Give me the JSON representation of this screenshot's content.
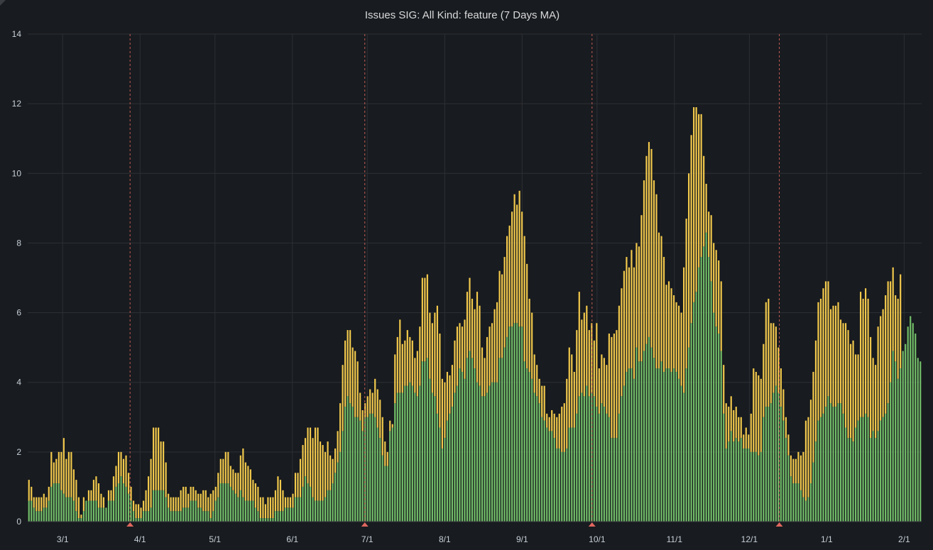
{
  "panel": {
    "title": "Issues SIG: All Kind: feature (7 Days MA)"
  },
  "chart_data": {
    "type": "bar",
    "stacked": true,
    "title": "Issues SIG: All Kind: feature (7 Days MA)",
    "xlabel": "",
    "ylabel": "",
    "ylim": [
      0,
      14
    ],
    "yticks": [
      0,
      2,
      4,
      6,
      8,
      10,
      12,
      14
    ],
    "grid": true,
    "legend": "none",
    "x_range": [
      "2020-02-16",
      "2021-02-08"
    ],
    "xticks": [
      {
        "date": "2020-03-01",
        "label": "3/1"
      },
      {
        "date": "2020-04-01",
        "label": "4/1"
      },
      {
        "date": "2020-05-01",
        "label": "5/1"
      },
      {
        "date": "2020-06-01",
        "label": "6/1"
      },
      {
        "date": "2020-07-01",
        "label": "7/1"
      },
      {
        "date": "2020-08-01",
        "label": "8/1"
      },
      {
        "date": "2020-09-01",
        "label": "9/1"
      },
      {
        "date": "2020-10-01",
        "label": "10/1"
      },
      {
        "date": "2020-11-01",
        "label": "11/1"
      },
      {
        "date": "2020-12-01",
        "label": "12/1"
      },
      {
        "date": "2021-01-01",
        "label": "1/1"
      },
      {
        "date": "2021-02-01",
        "label": "2/1"
      }
    ],
    "annotations": [
      "2020-03-28",
      "2020-06-30",
      "2020-09-29",
      "2020-12-13"
    ],
    "colors": {
      "green": "#73bf69",
      "yellow": "#f2c94c",
      "annotation": "#e0665e",
      "grid": "#2c3035"
    },
    "series": [
      {
        "color": "#73bf69",
        "values": [
          0.6,
          0.6,
          0.4,
          0.3,
          0.3,
          0.3,
          0.4,
          0.4,
          0.6,
          1,
          1.1,
          1.1,
          1.1,
          0.9,
          0.8,
          0.7,
          0.7,
          0.7,
          0.6,
          0.3,
          0.1,
          0.1,
          0.3,
          0.6,
          0.6,
          0.6,
          0.6,
          0.6,
          0.4,
          0.4,
          0.4,
          0.4,
          0.6,
          0.6,
          0.6,
          1,
          1.1,
          1.3,
          1.1,
          1,
          0.8,
          0.6,
          0.3,
          0.1,
          0.1,
          0.1,
          0.3,
          0.3,
          0.3,
          0.4,
          0.9,
          0.9,
          0.9,
          0.9,
          0.9,
          0.7,
          0.4,
          0.3,
          0.3,
          0.3,
          0.3,
          0.3,
          0.4,
          0.4,
          0.4,
          0.6,
          0.6,
          0.6,
          0.4,
          0.4,
          0.3,
          0.3,
          0.3,
          0.1,
          0.3,
          0.6,
          0.7,
          1.1,
          1.1,
          1.1,
          1.1,
          1,
          0.9,
          0.8,
          0.7,
          0.9,
          0.7,
          0.6,
          0.6,
          0.6,
          0.6,
          0.4,
          0.3,
          0.1,
          0.1,
          0.1,
          0.1,
          0.1,
          0.1,
          0.3,
          0.3,
          0.3,
          0.3,
          0.4,
          0.4,
          0.4,
          0.4,
          0.7,
          0.7,
          0.7,
          1,
          1.3,
          1.1,
          1,
          0.7,
          0.6,
          0.6,
          0.6,
          0.6,
          0.7,
          0.9,
          0.9,
          1.1,
          1.4,
          1.7,
          2,
          2.6,
          3.3,
          3.6,
          3.4,
          3.3,
          3,
          3,
          2.9,
          2.6,
          3,
          3,
          3.1,
          3.1,
          3,
          2.7,
          2.4,
          1.9,
          1.6,
          1.6,
          2.6,
          2.7,
          3.4,
          3.7,
          3.7,
          3.7,
          3.9,
          3.9,
          4,
          3.9,
          3.7,
          3.6,
          3.9,
          4.6,
          4.6,
          4.7,
          4.1,
          3.7,
          3.6,
          3.1,
          2.7,
          2.1,
          2.4,
          2.9,
          3.1,
          3.3,
          3.7,
          3.9,
          4.4,
          4.3,
          4.1,
          4.7,
          4.9,
          4.7,
          4.4,
          4,
          3.9,
          3.6,
          3.6,
          3.7,
          3.9,
          4,
          4,
          4,
          4.7,
          4.7,
          5,
          5.3,
          5.6,
          5.6,
          5.7,
          5.7,
          5.6,
          5.6,
          4.6,
          4.4,
          4.3,
          4.1,
          3.7,
          3.6,
          3.4,
          3,
          2.9,
          2.7,
          2.6,
          2.6,
          2.4,
          2.1,
          2.1,
          2,
          2,
          2.1,
          2.7,
          2.7,
          2.7,
          3.1,
          3.6,
          3.7,
          3.6,
          3.9,
          3.6,
          3.7,
          3.6,
          3.3,
          3.1,
          3.4,
          3.3,
          3.1,
          3,
          2.4,
          2.4,
          2.4,
          3.1,
          3.6,
          3.9,
          4.3,
          4.4,
          4.4,
          4.1,
          5,
          4.6,
          4.6,
          4.9,
          5.1,
          5.3,
          5,
          4.7,
          4.4,
          4.4,
          4.6,
          4.3,
          4.4,
          4.4,
          4.3,
          4.4,
          4.3,
          4.1,
          3.9,
          3.7,
          4.4,
          5,
          5.7,
          6.3,
          6.6,
          7.3,
          7.6,
          7.9,
          8.3,
          7.6,
          6.9,
          6,
          5.6,
          5.4,
          4.9,
          3.1,
          2.1,
          2.3,
          2.6,
          2.3,
          2.4,
          2.3,
          2.4,
          2.1,
          2.1,
          2.1,
          2,
          2,
          2,
          1.9,
          2,
          3,
          3.3,
          3.3,
          3.4,
          3.7,
          3.9,
          3.7,
          3.3,
          2.9,
          2.4,
          1.9,
          1.3,
          1.1,
          1.1,
          1.1,
          0.9,
          0.7,
          0.6,
          0.7,
          1.1,
          1.7,
          2.3,
          2.9,
          3,
          3.1,
          3.3,
          3.6,
          3.4,
          3.3,
          3.3,
          3.4,
          3.4,
          3.1,
          2.7,
          2.4,
          2.4,
          2.3,
          2.7,
          2.9,
          3,
          3,
          3.1,
          3,
          2.4,
          2.6,
          2.4,
          2.6,
          2.9,
          3,
          3.1,
          3.4,
          4,
          4.9,
          4.6,
          4.1,
          4.4,
          4.9,
          5.1,
          5.6,
          5.9,
          5.7,
          5.4,
          4.7,
          4.6
        ]
      },
      {
        "color": "#f2c94c",
        "values": [
          0.6,
          0.4,
          0.3,
          0.4,
          0.4,
          0.4,
          0.4,
          0.3,
          0.4,
          1,
          0.6,
          0.7,
          0.9,
          1.1,
          1.6,
          1.1,
          1.3,
          1.3,
          0.9,
          0.9,
          0.6,
          0.1,
          0.4,
          0,
          0.3,
          0.3,
          0.6,
          0.7,
          0.7,
          0.4,
          0.3,
          0,
          0.3,
          0.3,
          0.7,
          0.6,
          0.9,
          0.7,
          0.7,
          0.9,
          0.6,
          0.4,
          0.3,
          0.4,
          0.4,
          0.3,
          0.3,
          0.6,
          1,
          1.4,
          1.8,
          1.8,
          1.8,
          1.4,
          1.4,
          1,
          0.4,
          0.4,
          0.4,
          0.4,
          0.4,
          0.6,
          0.6,
          0.6,
          0.4,
          0.4,
          0.4,
          0.3,
          0.4,
          0.4,
          0.6,
          0.6,
          0.4,
          0.7,
          0.6,
          0.4,
          0.7,
          0.7,
          0.7,
          0.9,
          0.9,
          0.6,
          0.6,
          0.6,
          0.7,
          1,
          1.4,
          1.1,
          1,
          0.9,
          0.6,
          0.7,
          0.7,
          0.6,
          0.6,
          0.4,
          0.6,
          0.6,
          0.6,
          0.6,
          1,
          0.9,
          0.6,
          0.3,
          0.3,
          0.3,
          0.4,
          0.7,
          0.7,
          1.1,
          1.2,
          1.1,
          1.6,
          1.7,
          1.7,
          2.1,
          2.1,
          1.7,
          1.6,
          1.3,
          1.4,
          1,
          0.7,
          0.7,
          0.9,
          1.4,
          1.9,
          1.9,
          1.9,
          2.1,
          1.7,
          1.9,
          1.6,
          0.8,
          0.6,
          0.4,
          0.6,
          0.7,
          0.6,
          1.1,
          1.1,
          1.1,
          1.1,
          0.7,
          0.4,
          0.3,
          0.1,
          1.4,
          1.6,
          2.1,
          1.4,
          1.3,
          1.6,
          1.3,
          1.3,
          1,
          1.3,
          1.7,
          2.4,
          2.4,
          2.4,
          1.9,
          2,
          2.4,
          3.1,
          2.7,
          2,
          1.6,
          1.4,
          1.1,
          1.2,
          1.5,
          1.7,
          1.3,
          1.3,
          1.7,
          1.9,
          2.1,
          1.7,
          1.7,
          2.6,
          2.3,
          1.4,
          1.1,
          1.6,
          1.7,
          1.7,
          2.1,
          2.3,
          2.5,
          2.4,
          2.6,
          2.9,
          2.9,
          3.3,
          3.7,
          3.4,
          3.9,
          3.3,
          3.6,
          3,
          2.1,
          1.9,
          1.1,
          0.9,
          0.7,
          0.9,
          1,
          0.4,
          0.4,
          0.6,
          0.7,
          0.9,
          1,
          1.3,
          1.4,
          2,
          2.3,
          2.1,
          1.6,
          2.4,
          3,
          2.1,
          2.4,
          2.3,
          1.9,
          2,
          1.6,
          2.4,
          1.3,
          1.4,
          1.4,
          1.4,
          2.4,
          2.9,
          3,
          3.1,
          3.1,
          3.1,
          3.3,
          3.3,
          2.9,
          3.4,
          3.2,
          3,
          3.3,
          4.2,
          4.9,
          5.4,
          5.6,
          5.7,
          5.1,
          5,
          3.9,
          3.6,
          3.3,
          2.4,
          2.5,
          2.4,
          2.1,
          2,
          2.1,
          2.1,
          3.6,
          4.3,
          5,
          5.4,
          5.6,
          5.3,
          4.4,
          4.1,
          2.6,
          1.4,
          1.3,
          1.9,
          2,
          2.2,
          2.1,
          2,
          1.4,
          1.3,
          1,
          1,
          0.9,
          0.9,
          0.7,
          0.6,
          0.4,
          0.6,
          0.4,
          1.1,
          2.4,
          2.3,
          2.3,
          2.1,
          2.1,
          3,
          3.1,
          2.3,
          2,
          1.7,
          1.3,
          1.1,
          0.9,
          0.6,
          0.6,
          0.6,
          0.7,
          0.7,
          0.9,
          1,
          1.3,
          2.3,
          2.3,
          2.4,
          2.6,
          2.9,
          3.4,
          3.4,
          3.6,
          3.6,
          3.3,
          2.7,
          2.9,
          2.9,
          2.9,
          2.4,
          2.6,
          3,
          3.1,
          2.7,
          2.9,
          2.1,
          1.9,
          3.6,
          3.4,
          3.6,
          3.4,
          2.9,
          2.1,
          2.1,
          3,
          3,
          3.1,
          3.4,
          3.5,
          2.9,
          2.4,
          1.9,
          2.3,
          2.7
        ]
      }
    ]
  }
}
